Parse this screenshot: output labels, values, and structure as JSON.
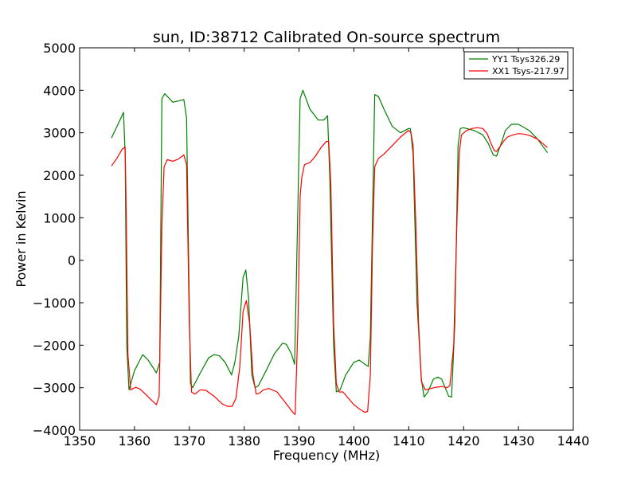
{
  "chart_data": {
    "type": "line",
    "title": "sun, ID:38712 Calibrated On-source spectrum",
    "xlabel": "Frequency (MHz)",
    "ylabel": "Power in Kelvin",
    "xlim": [
      1350,
      1440
    ],
    "ylim": [
      -4000,
      5000
    ],
    "xticks": [
      "1350",
      "1360",
      "1370",
      "1380",
      "1390",
      "1400",
      "1410",
      "1420",
      "1430",
      "1440"
    ],
    "yticks": [
      "−4000",
      "−3000",
      "−2000",
      "−1000",
      "0",
      "1000",
      "2000",
      "3000",
      "4000",
      "5000"
    ],
    "grid": false,
    "legend_position": "top-right",
    "series": [
      {
        "name": "YY1 Tsys326.29",
        "color": "#008000",
        "points": [
          [
            1355.8,
            2880
          ],
          [
            1357.0,
            3200
          ],
          [
            1358.0,
            3480
          ],
          [
            1358.3,
            2500
          ],
          [
            1358.6,
            -2000
          ],
          [
            1359.0,
            -3050
          ],
          [
            1360.0,
            -2600
          ],
          [
            1361.5,
            -2220
          ],
          [
            1362.5,
            -2350
          ],
          [
            1364.0,
            -2650
          ],
          [
            1364.6,
            -2400
          ],
          [
            1365.0,
            3800
          ],
          [
            1365.5,
            3920
          ],
          [
            1367.0,
            3720
          ],
          [
            1369.0,
            3780
          ],
          [
            1369.5,
            3350
          ],
          [
            1370.2,
            -2900
          ],
          [
            1370.6,
            -3000
          ],
          [
            1372.0,
            -2650
          ],
          [
            1373.5,
            -2300
          ],
          [
            1374.5,
            -2220
          ],
          [
            1375.5,
            -2250
          ],
          [
            1376.5,
            -2400
          ],
          [
            1377.7,
            -2700
          ],
          [
            1378.3,
            -2400
          ],
          [
            1379.0,
            -1800
          ],
          [
            1379.8,
            -400
          ],
          [
            1380.3,
            -230
          ],
          [
            1380.8,
            -900
          ],
          [
            1381.4,
            -2700
          ],
          [
            1382.0,
            -3000
          ],
          [
            1382.6,
            -2950
          ],
          [
            1384.0,
            -2600
          ],
          [
            1385.5,
            -2200
          ],
          [
            1387.0,
            -1950
          ],
          [
            1387.7,
            -1980
          ],
          [
            1388.6,
            -2200
          ],
          [
            1389.2,
            -2450
          ],
          [
            1390.2,
            3800
          ],
          [
            1390.7,
            4000
          ],
          [
            1392.0,
            3550
          ],
          [
            1393.5,
            3300
          ],
          [
            1394.5,
            3300
          ],
          [
            1395.2,
            3400
          ],
          [
            1395.6,
            2000
          ],
          [
            1396.3,
            -2000
          ],
          [
            1396.8,
            -3100
          ],
          [
            1397.5,
            -3050
          ],
          [
            1398.5,
            -2700
          ],
          [
            1400.0,
            -2400
          ],
          [
            1401.0,
            -2350
          ],
          [
            1402.0,
            -2450
          ],
          [
            1402.6,
            -2500
          ],
          [
            1403.0,
            -1800
          ],
          [
            1403.8,
            3900
          ],
          [
            1404.5,
            3850
          ],
          [
            1405.5,
            3550
          ],
          [
            1407.0,
            3150
          ],
          [
            1408.5,
            3000
          ],
          [
            1410.0,
            3100
          ],
          [
            1410.3,
            3100
          ],
          [
            1410.8,
            2500
          ],
          [
            1411.5,
            -1000
          ],
          [
            1412.3,
            -2800
          ],
          [
            1412.8,
            -3220
          ],
          [
            1413.5,
            -3100
          ],
          [
            1414.5,
            -2800
          ],
          [
            1415.3,
            -2750
          ],
          [
            1416.0,
            -2800
          ],
          [
            1416.8,
            -3050
          ],
          [
            1417.3,
            -3200
          ],
          [
            1417.8,
            -3220
          ],
          [
            1418.4,
            -1500
          ],
          [
            1419.0,
            2700
          ],
          [
            1419.4,
            3100
          ],
          [
            1420.0,
            3120
          ],
          [
            1422.0,
            3050
          ],
          [
            1423.5,
            2950
          ],
          [
            1424.5,
            2750
          ],
          [
            1425.4,
            2480
          ],
          [
            1426.0,
            2450
          ],
          [
            1427.0,
            2800
          ],
          [
            1427.6,
            3050
          ],
          [
            1428.7,
            3200
          ],
          [
            1430.0,
            3200
          ],
          [
            1432.0,
            3050
          ],
          [
            1433.5,
            2850
          ],
          [
            1435.3,
            2530
          ]
        ]
      },
      {
        "name": "XX1 Tsys-217.97",
        "color": "#ff0000",
        "points": [
          [
            1355.8,
            2220
          ],
          [
            1356.8,
            2400
          ],
          [
            1357.8,
            2620
          ],
          [
            1358.3,
            2660
          ],
          [
            1358.5,
            1000
          ],
          [
            1358.8,
            -2200
          ],
          [
            1359.3,
            -3050
          ],
          [
            1360.2,
            -2990
          ],
          [
            1361.0,
            -3030
          ],
          [
            1362.0,
            -3150
          ],
          [
            1363.0,
            -3280
          ],
          [
            1364.0,
            -3400
          ],
          [
            1364.5,
            -3200
          ],
          [
            1365.0,
            800
          ],
          [
            1365.4,
            2200
          ],
          [
            1366.0,
            2370
          ],
          [
            1367.0,
            2330
          ],
          [
            1368.0,
            2380
          ],
          [
            1369.0,
            2480
          ],
          [
            1369.5,
            2250
          ],
          [
            1370.0,
            -1500
          ],
          [
            1370.4,
            -3100
          ],
          [
            1371.0,
            -3150
          ],
          [
            1372.0,
            -3050
          ],
          [
            1373.0,
            -3060
          ],
          [
            1374.5,
            -3200
          ],
          [
            1376.0,
            -3380
          ],
          [
            1377.0,
            -3440
          ],
          [
            1377.8,
            -3440
          ],
          [
            1378.5,
            -3250
          ],
          [
            1379.2,
            -2500
          ],
          [
            1379.8,
            -1200
          ],
          [
            1380.4,
            -950
          ],
          [
            1381.0,
            -1500
          ],
          [
            1381.6,
            -2700
          ],
          [
            1382.2,
            -3150
          ],
          [
            1382.8,
            -3130
          ],
          [
            1383.5,
            -3050
          ],
          [
            1384.5,
            -3020
          ],
          [
            1386.0,
            -3100
          ],
          [
            1387.5,
            -3350
          ],
          [
            1389.0,
            -3600
          ],
          [
            1389.3,
            -3630
          ],
          [
            1389.8,
            -1500
          ],
          [
            1390.2,
            1500
          ],
          [
            1390.5,
            1950
          ],
          [
            1391.0,
            2250
          ],
          [
            1392.0,
            2300
          ],
          [
            1393.0,
            2450
          ],
          [
            1394.0,
            2650
          ],
          [
            1395.0,
            2800
          ],
          [
            1395.4,
            2790
          ],
          [
            1395.8,
            1800
          ],
          [
            1396.3,
            -1500
          ],
          [
            1396.8,
            -2900
          ],
          [
            1397.3,
            -3100
          ],
          [
            1398.0,
            -3100
          ],
          [
            1399.0,
            -3250
          ],
          [
            1400.0,
            -3400
          ],
          [
            1401.0,
            -3500
          ],
          [
            1402.0,
            -3580
          ],
          [
            1402.5,
            -3560
          ],
          [
            1403.0,
            -2700
          ],
          [
            1403.4,
            400
          ],
          [
            1403.8,
            2200
          ],
          [
            1404.5,
            2400
          ],
          [
            1405.5,
            2500
          ],
          [
            1407.0,
            2700
          ],
          [
            1408.5,
            2900
          ],
          [
            1410.0,
            3060
          ],
          [
            1410.4,
            3000
          ],
          [
            1410.8,
            2700
          ],
          [
            1411.3,
            800
          ],
          [
            1411.8,
            -1500
          ],
          [
            1412.3,
            -2850
          ],
          [
            1413.0,
            -3050
          ],
          [
            1414.0,
            -3020
          ],
          [
            1415.0,
            -2990
          ],
          [
            1416.0,
            -2970
          ],
          [
            1417.0,
            -3000
          ],
          [
            1417.5,
            -2950
          ],
          [
            1418.2,
            -2000
          ],
          [
            1418.8,
            1000
          ],
          [
            1419.2,
            2500
          ],
          [
            1419.6,
            2950
          ],
          [
            1420.5,
            3050
          ],
          [
            1421.5,
            3100
          ],
          [
            1422.5,
            3120
          ],
          [
            1423.5,
            3100
          ],
          [
            1424.3,
            2980
          ],
          [
            1425.0,
            2750
          ],
          [
            1425.6,
            2580
          ],
          [
            1426.0,
            2560
          ],
          [
            1426.5,
            2650
          ],
          [
            1427.3,
            2800
          ],
          [
            1428.0,
            2900
          ],
          [
            1429.0,
            2950
          ],
          [
            1430.0,
            2980
          ],
          [
            1431.0,
            2970
          ],
          [
            1432.0,
            2940
          ],
          [
            1433.5,
            2850
          ],
          [
            1435.3,
            2650
          ]
        ]
      }
    ]
  }
}
